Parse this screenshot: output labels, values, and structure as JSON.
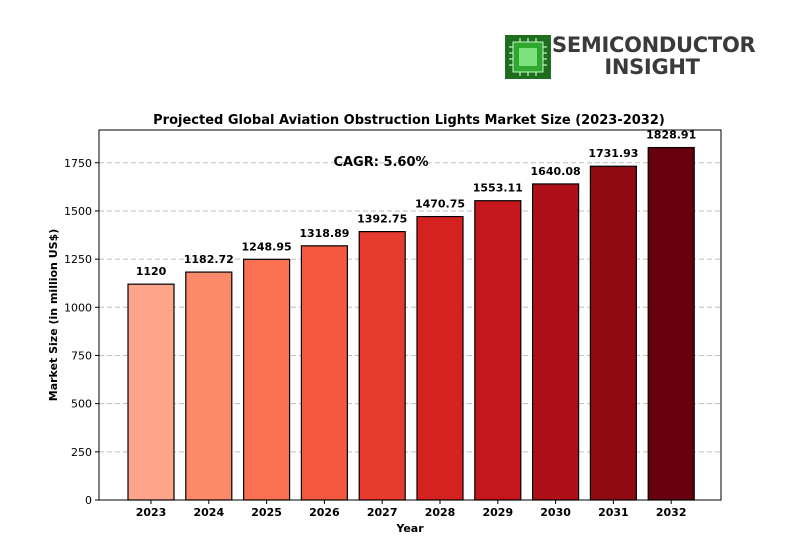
{
  "logo": {
    "line1": "SEMICONDUCTOR",
    "line2": "INSIGHT",
    "icon": "chip-icon",
    "colors": {
      "chip_bg": "#1f7a1f",
      "chip_core": "#5fd35f",
      "text": "#3a3a3a"
    }
  },
  "chart_data": {
    "type": "bar",
    "title": "Projected Global Aviation Obstruction Lights Market Size (2023-2032)",
    "xlabel": "Year",
    "ylabel": "Market Size (in million US$)",
    "categories": [
      "2023",
      "2024",
      "2025",
      "2026",
      "2027",
      "2028",
      "2029",
      "2030",
      "2031",
      "2032"
    ],
    "values": [
      1120,
      1182.72,
      1248.95,
      1318.89,
      1392.75,
      1470.75,
      1553.11,
      1640.08,
      1731.93,
      1828.91
    ],
    "value_labels": [
      "1120",
      "1182.72",
      "1248.95",
      "1318.89",
      "1392.75",
      "1470.75",
      "1553.11",
      "1640.08",
      "1731.93",
      "1828.91"
    ],
    "ylim": [
      0,
      1920
    ],
    "yticks": [
      0,
      250,
      500,
      750,
      1000,
      1250,
      1500,
      1750
    ],
    "ytick_labels": [
      "0",
      "250",
      "500",
      "750",
      "1000",
      "1250",
      "1500",
      "1750"
    ],
    "grid": "horizontal dashed",
    "annotation": "CAGR: 5.60%",
    "colors": [
      "#fca58a",
      "#fc8a6a",
      "#fb7050",
      "#f4583f",
      "#e83b2f",
      "#d52221",
      "#c4161c",
      "#ad1117",
      "#8f0b12",
      "#67000d"
    ]
  }
}
